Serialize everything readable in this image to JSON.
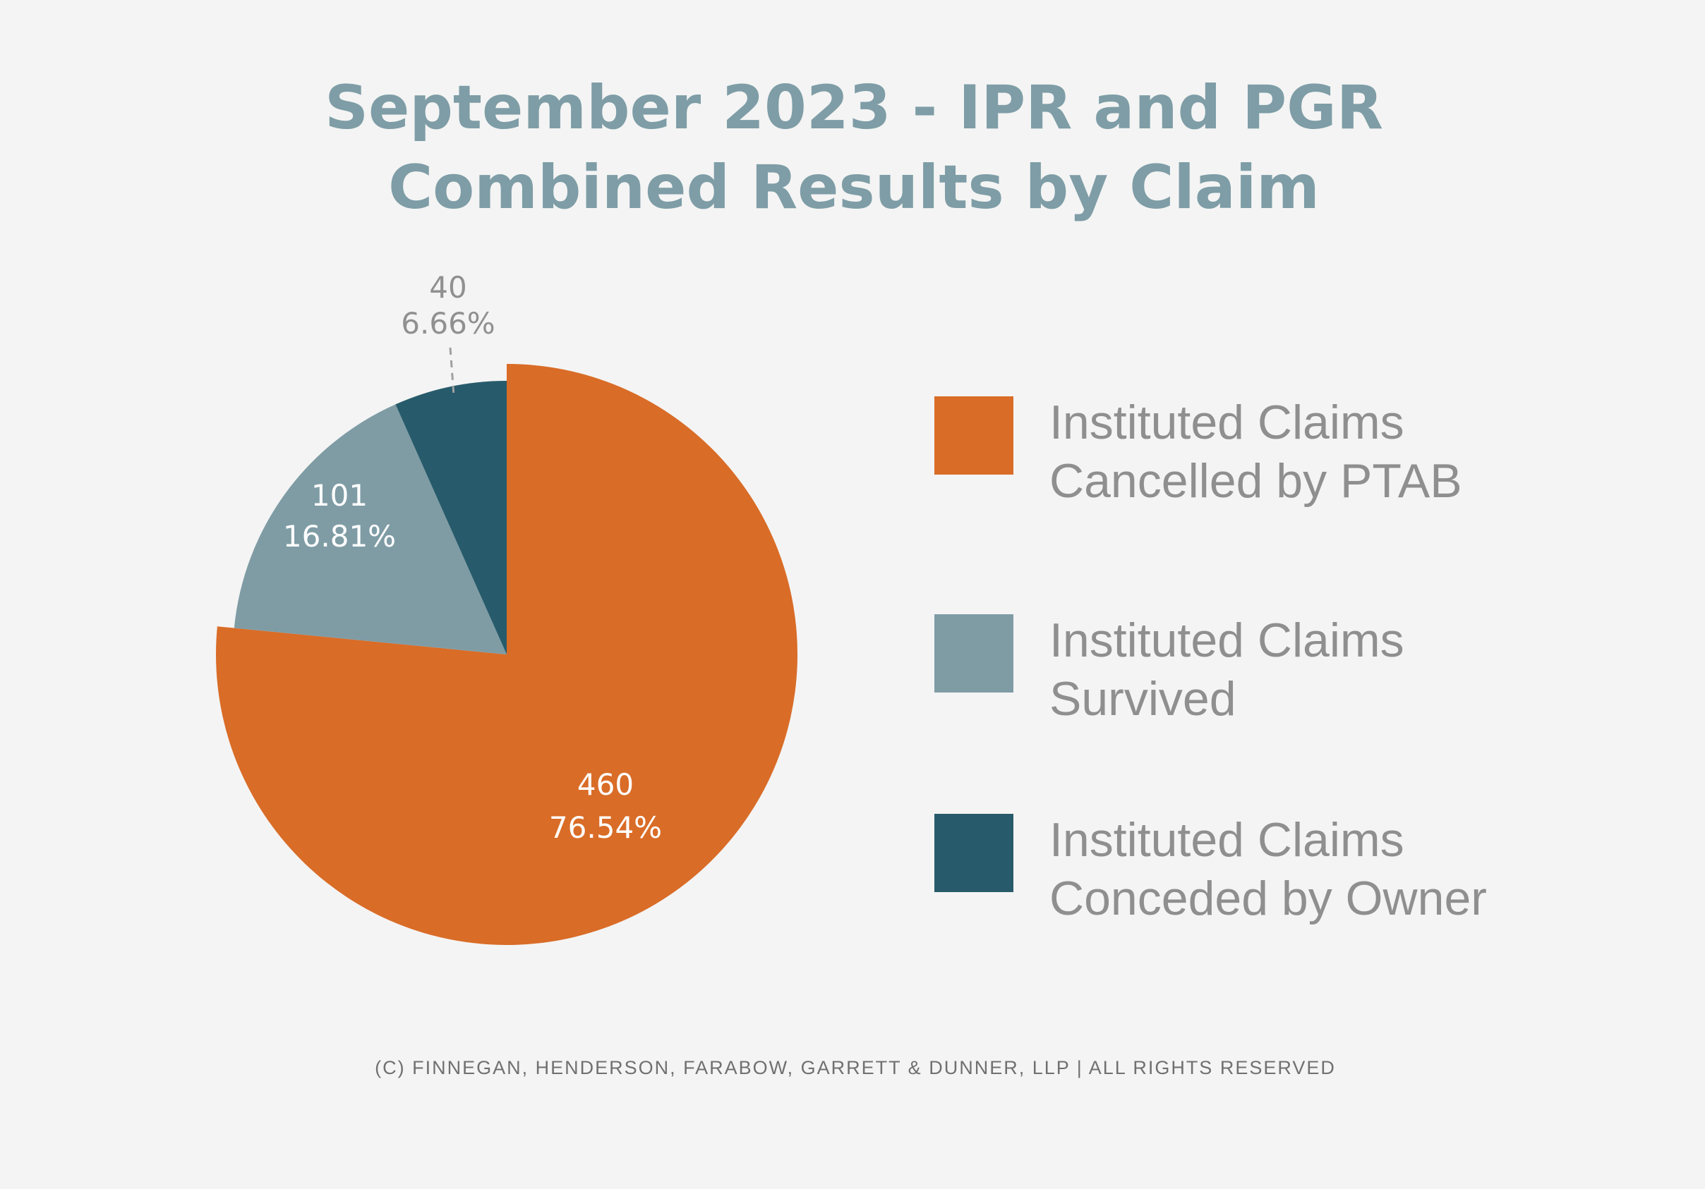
{
  "chart_data": {
    "type": "pie",
    "title": [
      "September 2023 - IPR and PGR",
      "Combined Results by Claim"
    ],
    "slices": [
      {
        "name": "Institituted Claims Cancelled by PTAB",
        "legend": [
          "Instituted Claims",
          "Cancelled by PTAB"
        ],
        "value": 460,
        "percent": "76.54%",
        "color": "#D96C27",
        "label_color": "#FFFFFF"
      },
      {
        "name": "Instituted Claims Survived",
        "legend": [
          "Instituted Claims",
          "Survived"
        ],
        "value": 101,
        "percent": "16.81%",
        "color": "#7F9CA5",
        "label_color": "#FFFFFF"
      },
      {
        "name": "Instituted Claims Conceded by Owner",
        "legend": [
          "Instituted Claims",
          "Conceded by Owner"
        ],
        "value": 40,
        "percent": "6.66%",
        "color": "#275B6B",
        "label_color": "#909090"
      }
    ],
    "start": "top",
    "direction": "clockwise",
    "legend_placement": "right"
  },
  "footer": "(C) FINNEGAN, HENDERSON, FARABOW, GARRETT & DUNNER, LLP | ALL RIGHTS RESERVED"
}
